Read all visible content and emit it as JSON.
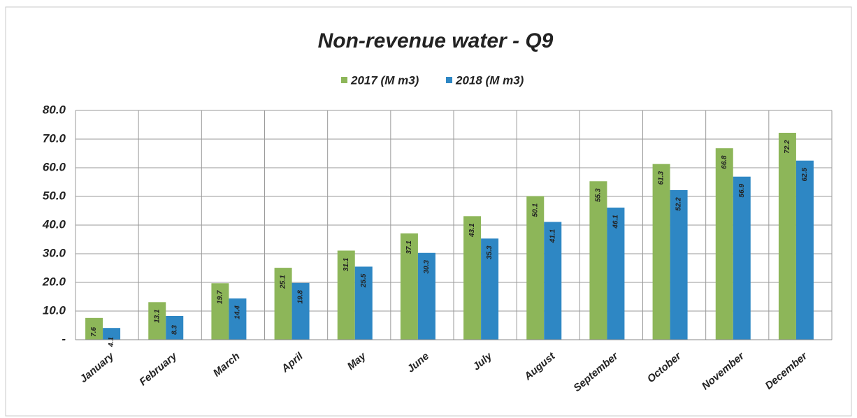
{
  "chart_data": {
    "type": "bar",
    "title": "Non-revenue water - Q9",
    "categories": [
      "January",
      "February",
      "March",
      "April",
      "May",
      "June",
      "July",
      "August",
      "September",
      "October",
      "November",
      "December"
    ],
    "series": [
      {
        "name": "2017 (M m3)",
        "color": "#8db659",
        "values": [
          7.6,
          13.1,
          19.7,
          25.1,
          31.1,
          37.1,
          43.1,
          50.1,
          55.3,
          61.3,
          66.8,
          72.2
        ]
      },
      {
        "name": "2018 (M m3)",
        "color": "#2e87c4",
        "values": [
          4.1,
          8.3,
          14.4,
          19.8,
          25.5,
          30.3,
          35.3,
          41.1,
          46.1,
          52.2,
          56.9,
          62.5
        ]
      }
    ],
    "ylim": [
      0,
      80
    ],
    "yticks": [
      {
        "value": 0,
        "label": "-"
      },
      {
        "value": 10,
        "label": "10.0"
      },
      {
        "value": 20,
        "label": "20.0"
      },
      {
        "value": 30,
        "label": "30.0"
      },
      {
        "value": 40,
        "label": "40.0"
      },
      {
        "value": 50,
        "label": "50.0"
      },
      {
        "value": 60,
        "label": "60.0"
      },
      {
        "value": 70,
        "label": "70.0"
      },
      {
        "value": 80,
        "label": "80.0"
      }
    ],
    "grid": true,
    "legend": "top"
  }
}
